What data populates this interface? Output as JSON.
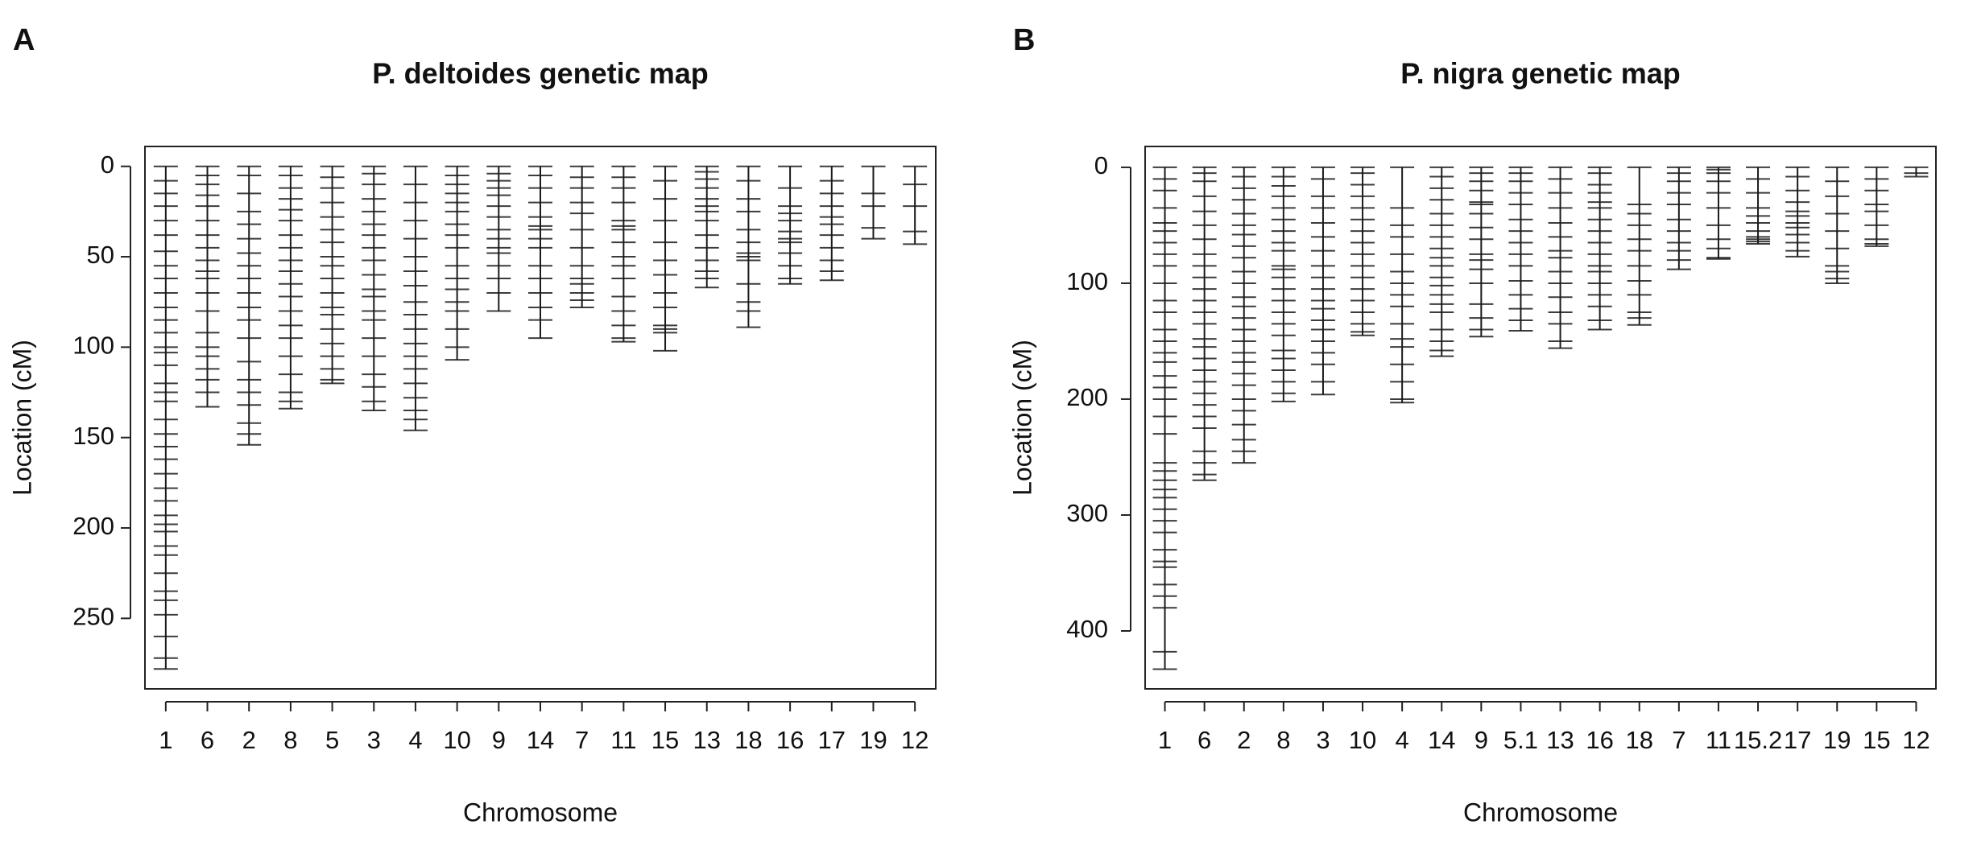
{
  "chart_data": [
    {
      "type": "genetic-map",
      "panel_label": "A",
      "title": "P. deltoides genetic map",
      "xlabel": "Chromosome",
      "ylabel": "Location (cM)",
      "color": "#1a1a1a",
      "y_inverted": true,
      "ylim": [
        -11,
        289
      ],
      "yticks": [
        0,
        50,
        100,
        150,
        200,
        250
      ],
      "categories": [
        "1",
        "6",
        "2",
        "8",
        "5",
        "3",
        "4",
        "10",
        "9",
        "14",
        "7",
        "11",
        "15",
        "13",
        "18",
        "16",
        "17",
        "19",
        "12"
      ],
      "values": [
        278,
        133,
        154,
        134,
        120,
        135,
        146,
        107,
        80,
        95,
        78,
        97,
        102,
        67,
        89,
        65,
        63,
        40,
        43
      ],
      "markers": [
        [
          0,
          8,
          15,
          22,
          30,
          38,
          47,
          55,
          62,
          70,
          78,
          85,
          92,
          100,
          103,
          110,
          120,
          125,
          130,
          140,
          148,
          155,
          162,
          170,
          178,
          185,
          193,
          198,
          202,
          210,
          215,
          225,
          235,
          240,
          248,
          260,
          272,
          278
        ],
        [
          0,
          5,
          10,
          16,
          22,
          30,
          38,
          45,
          52,
          58,
          62,
          70,
          80,
          92,
          100,
          105,
          112,
          118,
          125,
          133
        ],
        [
          0,
          5,
          15,
          25,
          32,
          40,
          48,
          55,
          62,
          70,
          78,
          85,
          95,
          108,
          118,
          125,
          132,
          142,
          148,
          154
        ],
        [
          0,
          5,
          12,
          18,
          24,
          30,
          38,
          45,
          52,
          58,
          65,
          72,
          80,
          88,
          95,
          105,
          115,
          125,
          130,
          134
        ],
        [
          0,
          6,
          12,
          20,
          28,
          35,
          42,
          50,
          55,
          62,
          70,
          78,
          82,
          90,
          98,
          105,
          112,
          118,
          120
        ],
        [
          0,
          4,
          10,
          18,
          25,
          32,
          38,
          45,
          52,
          60,
          68,
          72,
          80,
          85,
          95,
          105,
          115,
          122,
          130,
          135
        ],
        [
          0,
          10,
          20,
          30,
          40,
          50,
          58,
          66,
          75,
          82,
          90,
          98,
          105,
          112,
          120,
          128,
          135,
          140,
          146
        ],
        [
          0,
          5,
          10,
          15,
          20,
          25,
          32,
          38,
          45,
          55,
          62,
          68,
          75,
          80,
          90,
          100,
          107
        ],
        [
          0,
          4,
          8,
          12,
          16,
          22,
          28,
          35,
          40,
          45,
          48,
          55,
          62,
          70,
          80
        ],
        [
          0,
          5,
          12,
          20,
          28,
          33,
          35,
          40,
          45,
          55,
          62,
          70,
          78,
          85,
          95
        ],
        [
          0,
          6,
          12,
          20,
          26,
          35,
          45,
          55,
          62,
          65,
          70,
          74,
          78
        ],
        [
          0,
          6,
          12,
          20,
          30,
          33,
          35,
          42,
          50,
          55,
          62,
          72,
          80,
          88,
          95,
          97
        ],
        [
          0,
          8,
          18,
          30,
          42,
          52,
          60,
          70,
          78,
          88,
          90,
          92,
          102
        ],
        [
          0,
          3,
          7,
          12,
          18,
          22,
          25,
          30,
          38,
          45,
          52,
          58,
          62,
          67
        ],
        [
          0,
          8,
          18,
          25,
          35,
          42,
          48,
          50,
          52,
          65,
          75,
          80,
          89
        ],
        [
          0,
          12,
          22,
          26,
          30,
          36,
          40,
          42,
          48,
          55,
          62,
          65
        ],
        [
          0,
          8,
          15,
          22,
          28,
          32,
          38,
          45,
          52,
          58,
          63
        ],
        [
          0,
          15,
          22,
          34,
          40
        ],
        [
          0,
          10,
          22,
          36,
          43
        ]
      ]
    },
    {
      "type": "genetic-map",
      "panel_label": "B",
      "title": "P. nigra genetic map",
      "xlabel": "Chromosome",
      "ylabel": "Location (cM)",
      "color": "#1a1a1a",
      "y_inverted": true,
      "ylim": [
        -18,
        450
      ],
      "yticks": [
        0,
        100,
        200,
        300,
        400
      ],
      "categories": [
        "1",
        "6",
        "2",
        "8",
        "3",
        "10",
        "4",
        "14",
        "9",
        "5.1",
        "13",
        "16",
        "18",
        "7",
        "11",
        "15.2",
        "17",
        "19",
        "15",
        "12"
      ],
      "values": [
        433,
        270,
        255,
        202,
        196,
        145,
        203,
        163,
        146,
        141,
        156,
        140,
        136,
        88,
        79,
        66,
        77,
        100,
        68,
        8
      ],
      "markers": [
        [
          0,
          10,
          20,
          35,
          48,
          55,
          65,
          75,
          85,
          100,
          115,
          125,
          140,
          150,
          160,
          168,
          180,
          190,
          200,
          215,
          230,
          255,
          262,
          270,
          278,
          285,
          295,
          305,
          315,
          330,
          340,
          345,
          360,
          370,
          380,
          418,
          433
        ],
        [
          0,
          5,
          12,
          25,
          38,
          50,
          62,
          75,
          85,
          95,
          105,
          115,
          125,
          135,
          148,
          155,
          165,
          175,
          185,
          195,
          205,
          215,
          225,
          245,
          255,
          265,
          270
        ],
        [
          0,
          8,
          18,
          28,
          40,
          50,
          58,
          68,
          78,
          90,
          100,
          112,
          120,
          130,
          140,
          150,
          160,
          168,
          178,
          188,
          200,
          210,
          222,
          235,
          245,
          255
        ],
        [
          0,
          8,
          16,
          25,
          35,
          45,
          55,
          65,
          72,
          85,
          88,
          95,
          105,
          115,
          125,
          135,
          145,
          158,
          165,
          175,
          185,
          195,
          202
        ],
        [
          0,
          10,
          25,
          35,
          48,
          60,
          72,
          85,
          95,
          105,
          115,
          122,
          132,
          140,
          150,
          160,
          170,
          185,
          196
        ],
        [
          0,
          5,
          15,
          25,
          35,
          45,
          55,
          65,
          75,
          85,
          95,
          105,
          115,
          125,
          135,
          142,
          145
        ],
        [
          0,
          35,
          50,
          60,
          75,
          90,
          100,
          110,
          120,
          135,
          148,
          155,
          170,
          185,
          200,
          203
        ],
        [
          0,
          8,
          18,
          28,
          40,
          50,
          60,
          70,
          78,
          85,
          95,
          102,
          110,
          118,
          125,
          140,
          150,
          158,
          163
        ],
        [
          0,
          5,
          12,
          20,
          30,
          32,
          40,
          52,
          62,
          75,
          80,
          88,
          100,
          118,
          130,
          140,
          146
        ],
        [
          0,
          5,
          12,
          22,
          32,
          45,
          55,
          65,
          75,
          85,
          98,
          110,
          122,
          132,
          141
        ],
        [
          0,
          10,
          22,
          35,
          48,
          60,
          72,
          78,
          90,
          100,
          112,
          125,
          135,
          150,
          156
        ],
        [
          0,
          5,
          15,
          22,
          30,
          35,
          45,
          55,
          65,
          75,
          85,
          90,
          100,
          110,
          120,
          132,
          140
        ],
        [
          0,
          32,
          40,
          50,
          62,
          72,
          85,
          98,
          110,
          125,
          130,
          136
        ],
        [
          0,
          5,
          12,
          22,
          32,
          45,
          55,
          65,
          72,
          80,
          88
        ],
        [
          0,
          2,
          5,
          12,
          22,
          35,
          50,
          62,
          70,
          78,
          79
        ],
        [
          0,
          10,
          22,
          35,
          42,
          48,
          55,
          60,
          62,
          64,
          66
        ],
        [
          0,
          8,
          20,
          30,
          38,
          42,
          48,
          52,
          58,
          65,
          72,
          77
        ],
        [
          0,
          12,
          25,
          40,
          55,
          70,
          85,
          90,
          96,
          100
        ],
        [
          0,
          10,
          20,
          32,
          38,
          50,
          62,
          66,
          68
        ],
        [
          0,
          5,
          8
        ]
      ]
    }
  ]
}
